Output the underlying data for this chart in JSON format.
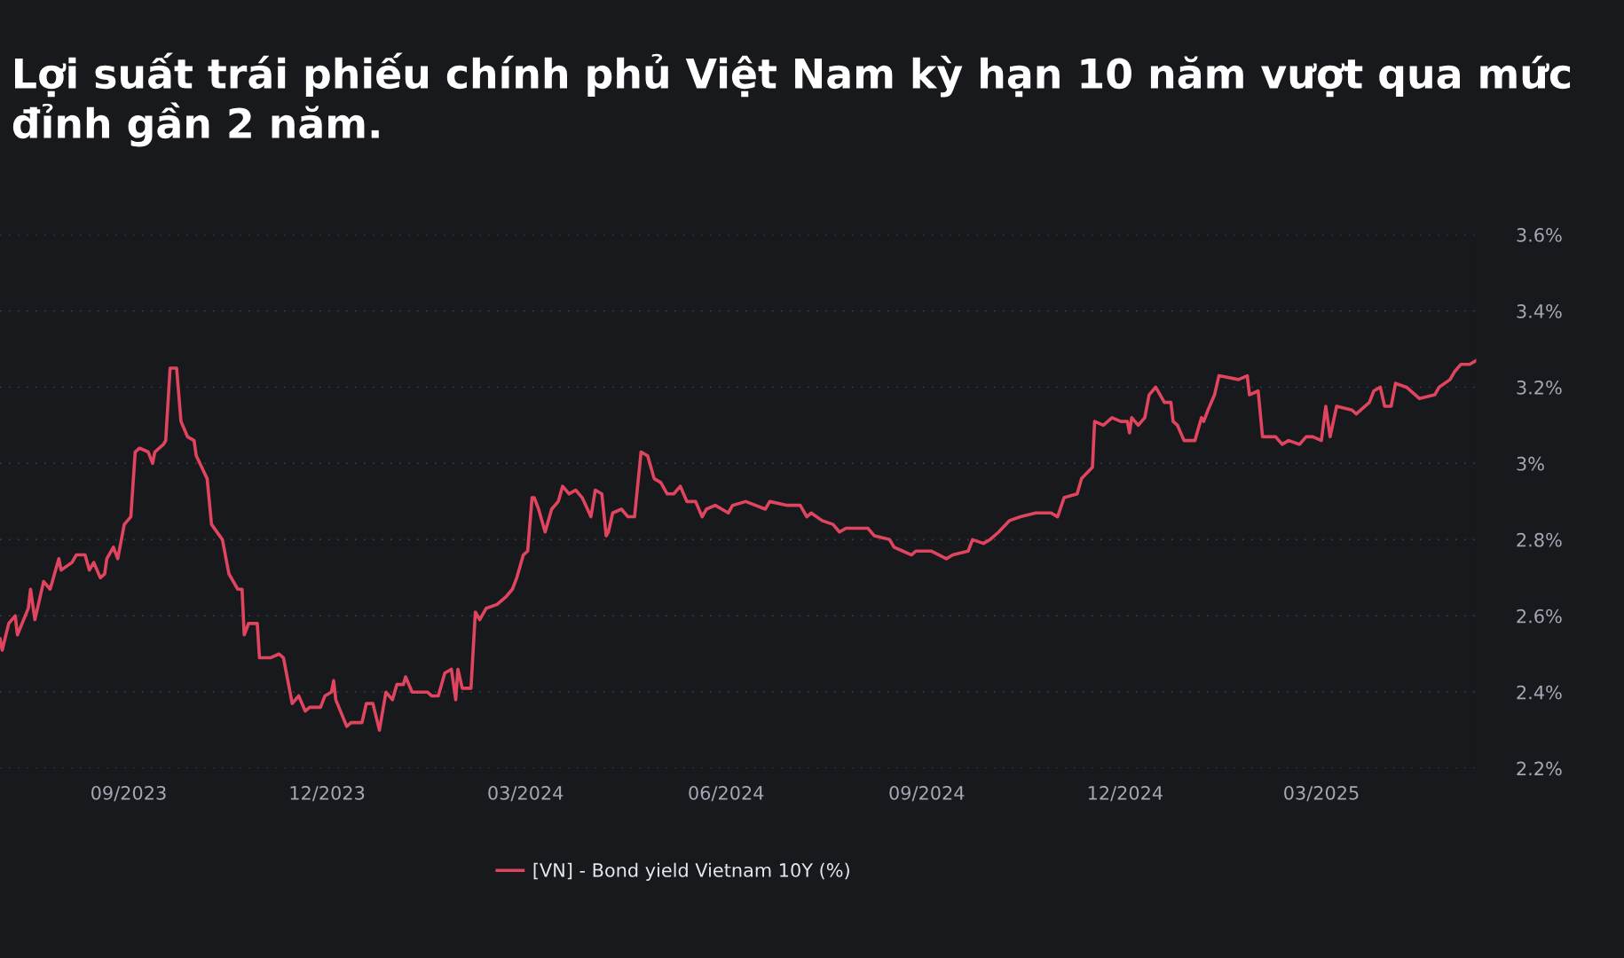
{
  "chart_data": {
    "type": "line",
    "title": "Lợi suất trái phiếu chính phủ Việt Nam kỳ hạn 10 năm vượt qua mức đỉnh gần 2 năm.",
    "xlim": [
      "2023-07-04",
      "2025-05-11"
    ],
    "xticks": [
      {
        "value": "2023-09-01",
        "label": "09/2023"
      },
      {
        "value": "2023-12-01",
        "label": "12/2023"
      },
      {
        "value": "2024-03-01",
        "label": "03/2024"
      },
      {
        "value": "2024-06-01",
        "label": "06/2024"
      },
      {
        "value": "2024-09-01",
        "label": "09/2024"
      },
      {
        "value": "2024-12-01",
        "label": "12/2024"
      },
      {
        "value": "2025-03-01",
        "label": "03/2025"
      }
    ],
    "ylim": [
      2.2,
      3.6
    ],
    "yticks": [
      {
        "value": 2.2,
        "label": "2.2%"
      },
      {
        "value": 2.4,
        "label": "2.4%"
      },
      {
        "value": 2.6,
        "label": "2.6%"
      },
      {
        "value": 2.8,
        "label": "2.8%"
      },
      {
        "value": 3.0,
        "label": "3%"
      },
      {
        "value": 3.2,
        "label": "3.2%"
      },
      {
        "value": 3.4,
        "label": "3.4%"
      },
      {
        "value": 3.6,
        "label": "3.6%"
      }
    ],
    "grid": "y",
    "legend": "bottom",
    "marker": "none",
    "line_style": "solid",
    "series": [
      {
        "name": "[VN] - Bond yield Vietnam 10Y (%)",
        "color": "#e0455f",
        "x": [
          "2023-07-04",
          "2023-07-05",
          "2023-07-08",
          "2023-07-11",
          "2023-07-12",
          "2023-07-17",
          "2023-07-18",
          "2023-07-20",
          "2023-07-24",
          "2023-07-27",
          "2023-07-31",
          "2023-08-01",
          "2023-08-06",
          "2023-08-08",
          "2023-08-12",
          "2023-08-14",
          "2023-08-16",
          "2023-08-19",
          "2023-08-21",
          "2023-08-22",
          "2023-08-25",
          "2023-08-27",
          "2023-08-30",
          "2023-09-02",
          "2023-09-04",
          "2023-09-06",
          "2023-09-10",
          "2023-09-12",
          "2023-09-13",
          "2023-09-17",
          "2023-09-18",
          "2023-09-20",
          "2023-09-23",
          "2023-09-25",
          "2023-09-28",
          "2023-10-01",
          "2023-10-02",
          "2023-10-07",
          "2023-10-09",
          "2023-10-14",
          "2023-10-17",
          "2023-10-21",
          "2023-10-23",
          "2023-10-24",
          "2023-10-26",
          "2023-10-30",
          "2023-10-31",
          "2023-11-05",
          "2023-11-09",
          "2023-11-11",
          "2023-11-15",
          "2023-11-18",
          "2023-11-21",
          "2023-11-23",
          "2023-11-28",
          "2023-11-30",
          "2023-12-03",
          "2023-12-04",
          "2023-12-05",
          "2023-12-10",
          "2023-12-12",
          "2023-12-17",
          "2023-12-19",
          "2023-12-22",
          "2023-12-25",
          "2023-12-28",
          "2023-12-31",
          "2024-01-02",
          "2024-01-05",
          "2024-01-06",
          "2024-01-09",
          "2024-01-16",
          "2024-01-18",
          "2024-01-21",
          "2024-01-24",
          "2024-01-27",
          "2024-01-29",
          "2024-01-30",
          "2024-02-01",
          "2024-02-05",
          "2024-02-07",
          "2024-02-09",
          "2024-02-12",
          "2024-02-17",
          "2024-02-19",
          "2024-02-21",
          "2024-02-24",
          "2024-02-26",
          "2024-02-29",
          "2024-03-02",
          "2024-03-04",
          "2024-03-05",
          "2024-03-07",
          "2024-03-10",
          "2024-03-13",
          "2024-03-16",
          "2024-03-18",
          "2024-03-21",
          "2024-03-24",
          "2024-03-27",
          "2024-03-31",
          "2024-04-02",
          "2024-04-05",
          "2024-04-07",
          "2024-04-08",
          "2024-04-10",
          "2024-04-14",
          "2024-04-17",
          "2024-04-20",
          "2024-04-23",
          "2024-04-26",
          "2024-04-29",
          "2024-05-02",
          "2024-05-05",
          "2024-05-08",
          "2024-05-11",
          "2024-05-14",
          "2024-05-18",
          "2024-05-21",
          "2024-05-23",
          "2024-05-27",
          "2024-06-02",
          "2024-06-04",
          "2024-06-10",
          "2024-06-19",
          "2024-06-21",
          "2024-06-29",
          "2024-07-05",
          "2024-07-08",
          "2024-07-10",
          "2024-07-15",
          "2024-07-20",
          "2024-07-23",
          "2024-07-26",
          "2024-08-05",
          "2024-08-08",
          "2024-08-15",
          "2024-08-17",
          "2024-08-21",
          "2024-08-25",
          "2024-08-27",
          "2024-09-03",
          "2024-09-10",
          "2024-09-13",
          "2024-09-20",
          "2024-09-22",
          "2024-09-27",
          "2024-09-30",
          "2024-10-04",
          "2024-10-09",
          "2024-10-14",
          "2024-10-21",
          "2024-10-28",
          "2024-10-31",
          "2024-11-03",
          "2024-11-09",
          "2024-11-11",
          "2024-11-16",
          "2024-11-17",
          "2024-11-21",
          "2024-11-25",
          "2024-11-29",
          "2024-12-02",
          "2024-12-03",
          "2024-12-04",
          "2024-12-07",
          "2024-12-10",
          "2024-12-12",
          "2024-12-15",
          "2024-12-19",
          "2024-12-22",
          "2024-12-23",
          "2024-12-25",
          "2024-12-28",
          "2025-01-02",
          "2025-01-05",
          "2025-01-06",
          "2025-01-08",
          "2025-01-11",
          "2025-01-13",
          "2025-01-22",
          "2025-01-26",
          "2025-01-27",
          "2025-01-31",
          "2025-02-02",
          "2025-02-08",
          "2025-02-11",
          "2025-02-14",
          "2025-02-19",
          "2025-02-22",
          "2025-02-25",
          "2025-03-01",
          "2025-03-03",
          "2025-03-05",
          "2025-03-08",
          "2025-03-15",
          "2025-03-17",
          "2025-03-23",
          "2025-03-25",
          "2025-03-28",
          "2025-03-30",
          "2025-04-02",
          "2025-04-04",
          "2025-04-09",
          "2025-04-15",
          "2025-04-22",
          "2025-04-24",
          "2025-04-29",
          "2025-05-01",
          "2025-05-04",
          "2025-05-08",
          "2025-05-11"
        ],
        "values": [
          2.54,
          2.51,
          2.58,
          2.6,
          2.55,
          2.62,
          2.67,
          2.59,
          2.69,
          2.67,
          2.75,
          2.72,
          2.74,
          2.76,
          2.76,
          2.72,
          2.74,
          2.7,
          2.71,
          2.75,
          2.78,
          2.75,
          2.84,
          2.86,
          3.03,
          3.04,
          3.03,
          3.0,
          3.03,
          3.05,
          3.06,
          3.25,
          3.25,
          3.11,
          3.07,
          3.06,
          3.02,
          2.96,
          2.84,
          2.8,
          2.71,
          2.67,
          2.67,
          2.55,
          2.58,
          2.58,
          2.49,
          2.49,
          2.5,
          2.49,
          2.37,
          2.39,
          2.35,
          2.36,
          2.36,
          2.39,
          2.4,
          2.43,
          2.38,
          2.31,
          2.32,
          2.32,
          2.37,
          2.37,
          2.3,
          2.4,
          2.38,
          2.42,
          2.42,
          2.44,
          2.4,
          2.4,
          2.39,
          2.39,
          2.45,
          2.46,
          2.38,
          2.46,
          2.41,
          2.41,
          2.61,
          2.59,
          2.62,
          2.63,
          2.64,
          2.65,
          2.67,
          2.7,
          2.76,
          2.77,
          2.91,
          2.91,
          2.88,
          2.82,
          2.88,
          2.9,
          2.94,
          2.92,
          2.93,
          2.91,
          2.86,
          2.93,
          2.92,
          2.81,
          2.82,
          2.87,
          2.88,
          2.86,
          2.86,
          3.03,
          3.02,
          2.96,
          2.95,
          2.92,
          2.92,
          2.94,
          2.9,
          2.9,
          2.86,
          2.88,
          2.89,
          2.87,
          2.89,
          2.9,
          2.88,
          2.9,
          2.89,
          2.89,
          2.86,
          2.87,
          2.85,
          2.84,
          2.82,
          2.83,
          2.83,
          2.81,
          2.8,
          2.78,
          2.77,
          2.76,
          2.77,
          2.77,
          2.75,
          2.76,
          2.77,
          2.8,
          2.79,
          2.8,
          2.82,
          2.85,
          2.86,
          2.87,
          2.87,
          2.86,
          2.91,
          2.92,
          2.96,
          2.99,
          3.11,
          3.1,
          3.12,
          3.11,
          3.11,
          3.08,
          3.12,
          3.1,
          3.12,
          3.18,
          3.2,
          3.16,
          3.16,
          3.11,
          3.1,
          3.06,
          3.06,
          3.12,
          3.11,
          3.14,
          3.18,
          3.23,
          3.22,
          3.23,
          3.18,
          3.19,
          3.07,
          3.07,
          3.05,
          3.06,
          3.05,
          3.07,
          3.07,
          3.06,
          3.15,
          3.07,
          3.15,
          3.14,
          3.13,
          3.16,
          3.19,
          3.2,
          3.15,
          3.15,
          3.21,
          3.2,
          3.17,
          3.18,
          3.2,
          3.22,
          3.24,
          3.26,
          3.26,
          3.27
        ]
      }
    ]
  }
}
